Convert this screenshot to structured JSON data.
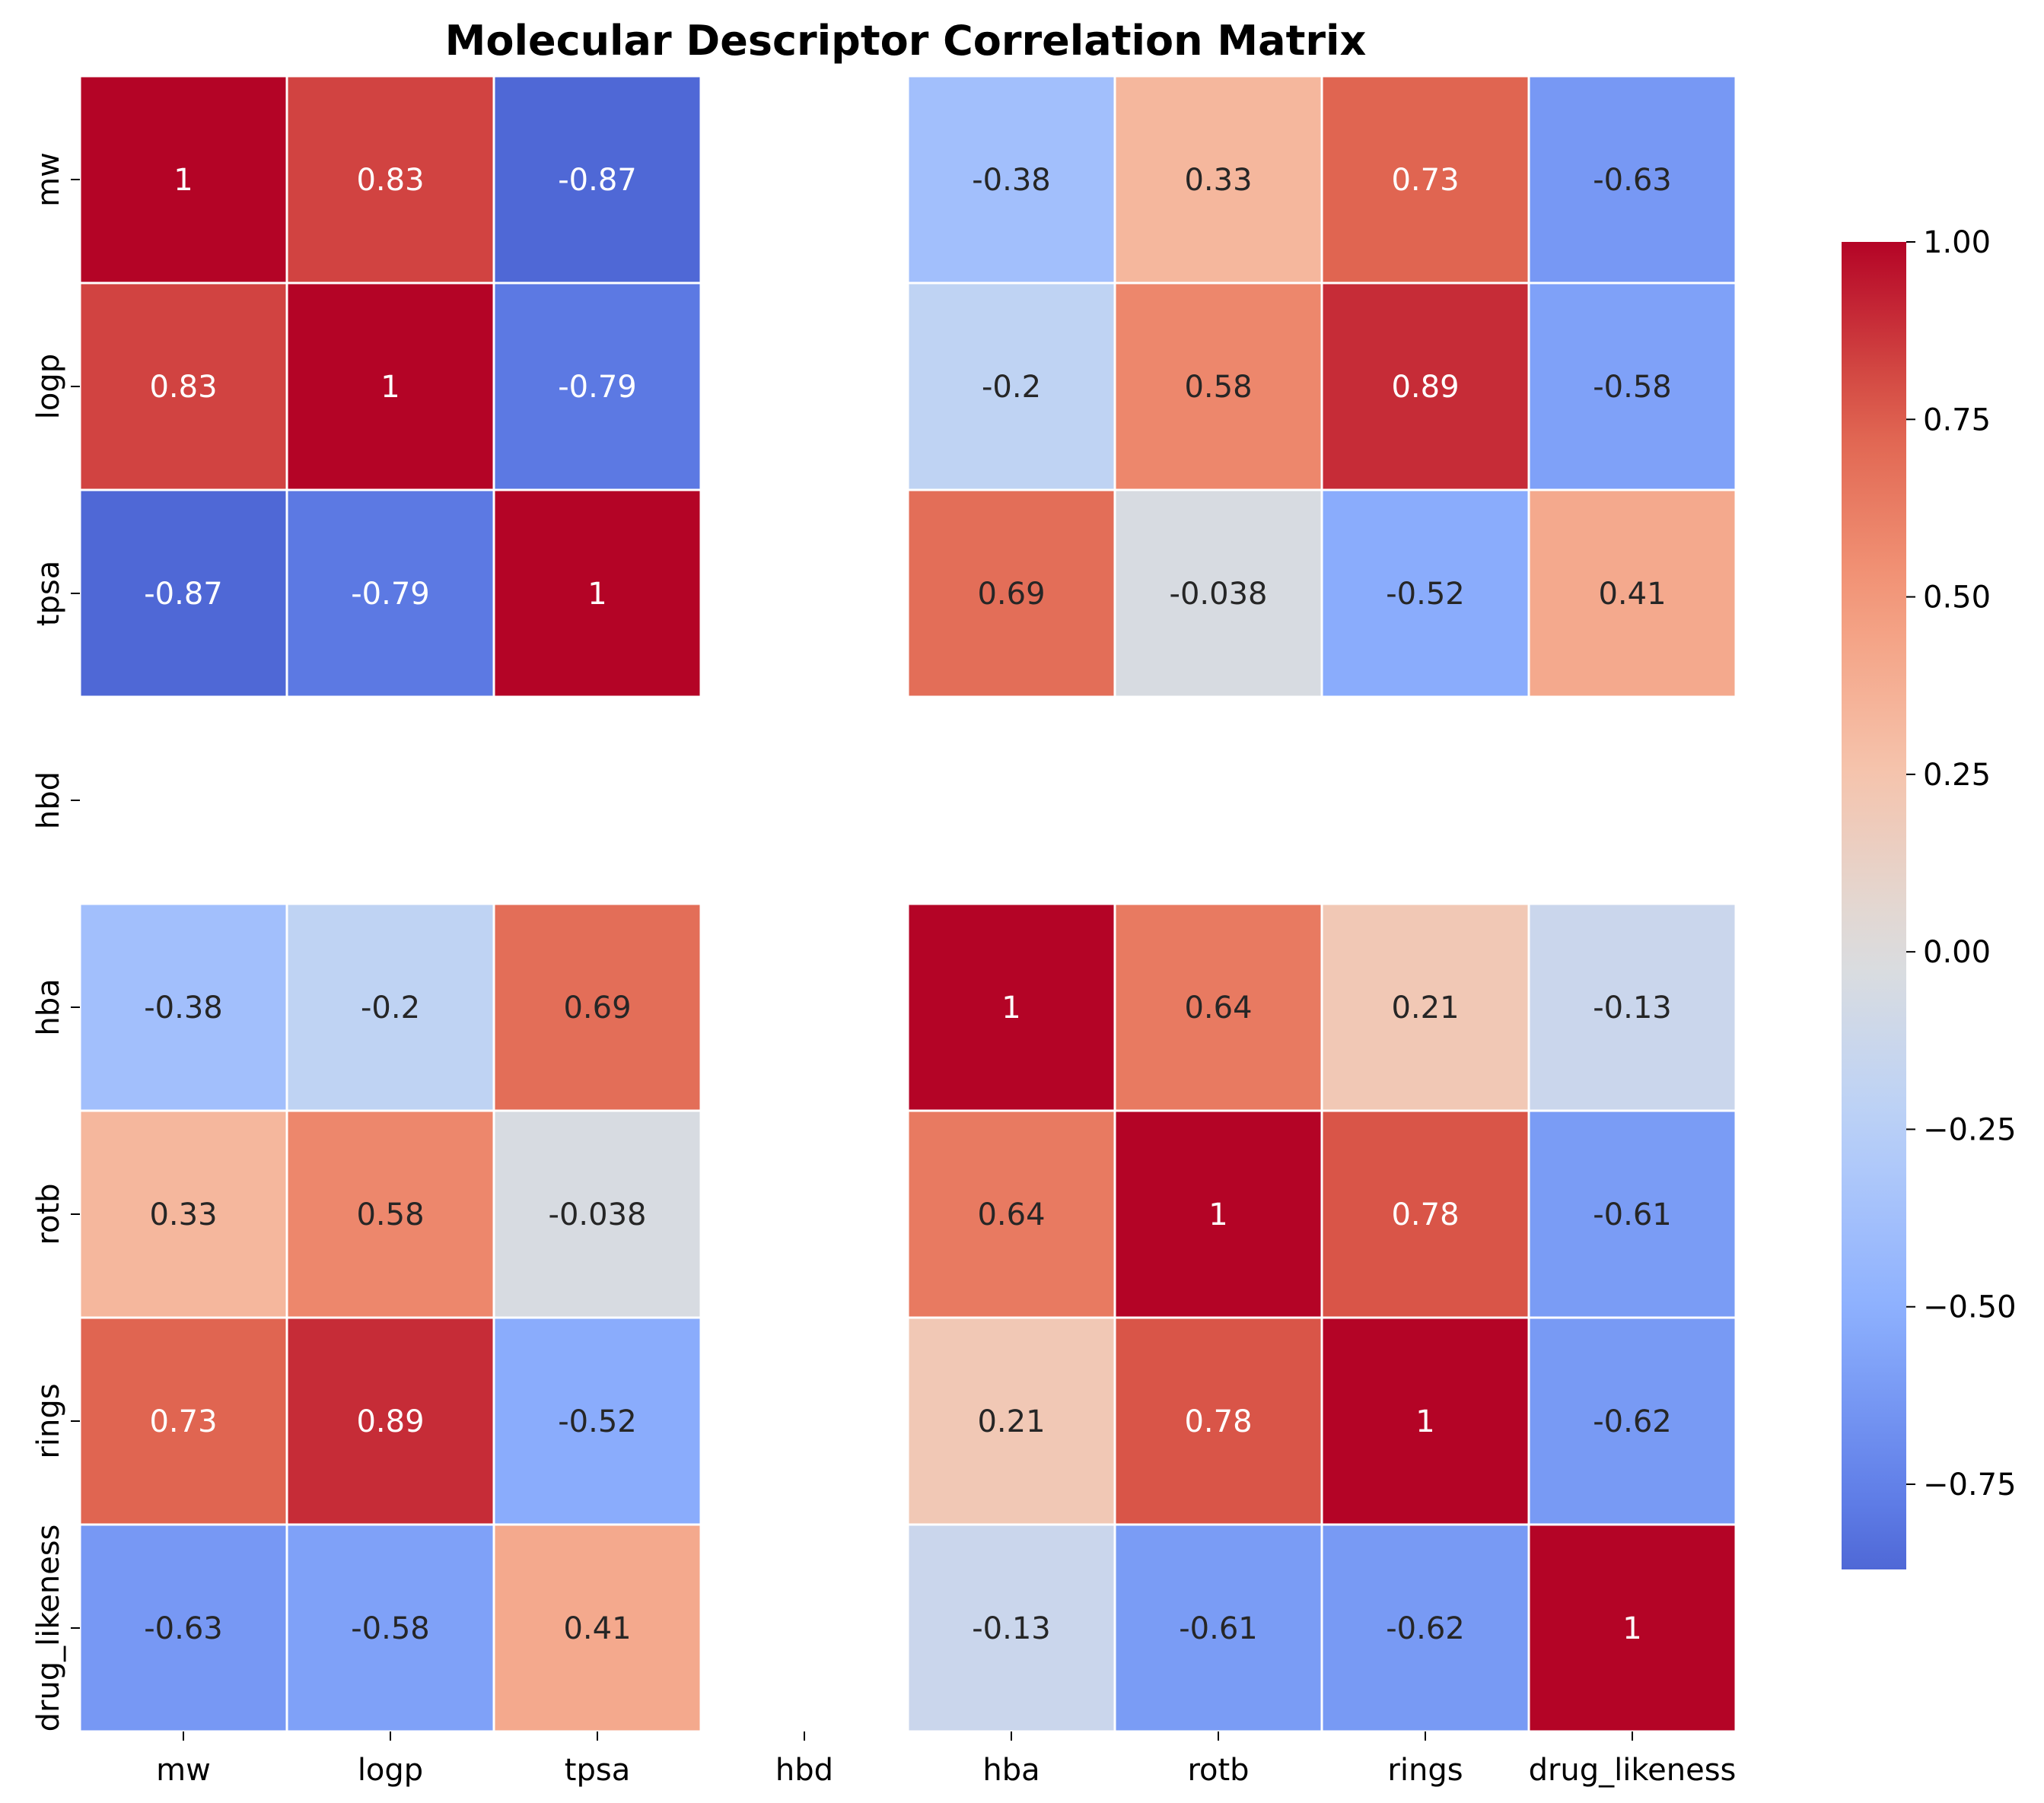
{
  "chart_data": {
    "type": "heatmap",
    "title": "Molecular Descriptor Correlation Matrix",
    "xlabel": "",
    "ylabel": "",
    "x_labels": [
      "mw",
      "logp",
      "tpsa",
      "hbd",
      "hba",
      "rotb",
      "rings",
      "drug_likeness"
    ],
    "y_labels": [
      "mw",
      "logp",
      "tpsa",
      "hbd",
      "hba",
      "rotb",
      "rings",
      "drug_likeness"
    ],
    "matrix": [
      [
        1,
        0.83,
        -0.87,
        null,
        -0.38,
        0.33,
        0.73,
        -0.63
      ],
      [
        0.83,
        1,
        -0.79,
        null,
        -0.2,
        0.58,
        0.89,
        -0.58
      ],
      [
        -0.87,
        -0.79,
        1,
        null,
        0.69,
        -0.038,
        -0.52,
        0.41
      ],
      [
        null,
        null,
        null,
        null,
        null,
        null,
        null,
        null
      ],
      [
        -0.38,
        -0.2,
        0.69,
        null,
        1,
        0.64,
        0.21,
        -0.13
      ],
      [
        0.33,
        0.58,
        -0.038,
        null,
        0.64,
        1,
        0.78,
        -0.61
      ],
      [
        0.73,
        0.89,
        -0.52,
        null,
        0.21,
        0.78,
        1,
        -0.62
      ],
      [
        -0.63,
        -0.58,
        0.41,
        null,
        -0.13,
        -0.61,
        -0.62,
        1
      ]
    ],
    "annotations": [
      [
        "1",
        "0.83",
        "-0.87",
        "",
        "-0.38",
        "0.33",
        "0.73",
        "-0.63"
      ],
      [
        "0.83",
        "1",
        "-0.79",
        "",
        "-0.2",
        "0.58",
        "0.89",
        "-0.58"
      ],
      [
        "-0.87",
        "-0.79",
        "1",
        "",
        "0.69",
        "-0.038",
        "-0.52",
        "0.41"
      ],
      [
        "",
        "",
        "",
        "",
        "",
        "",
        "",
        ""
      ],
      [
        "-0.38",
        "-0.2",
        "0.69",
        "",
        "1",
        "0.64",
        "0.21",
        "-0.13"
      ],
      [
        "0.33",
        "0.58",
        "-0.038",
        "",
        "0.64",
        "1",
        "0.78",
        "-0.61"
      ],
      [
        "0.73",
        "0.89",
        "-0.52",
        "",
        "0.21",
        "0.78",
        "1",
        "-0.62"
      ],
      [
        "-0.63",
        "-0.58",
        "0.41",
        "",
        "-0.13",
        "-0.61",
        "-0.62",
        "1"
      ]
    ],
    "colormap": "coolwarm",
    "colorbar": {
      "vmin": -0.87,
      "vmax": 1.0,
      "ticks": [
        1.0,
        0.75,
        0.5,
        0.25,
        0.0,
        -0.25,
        -0.5,
        -0.75
      ],
      "tick_labels": [
        "1.00",
        "0.75",
        "0.50",
        "0.25",
        "0.00",
        "−0.25",
        "−0.50",
        "−0.75"
      ]
    },
    "grid": false,
    "legend_placement": "right"
  }
}
